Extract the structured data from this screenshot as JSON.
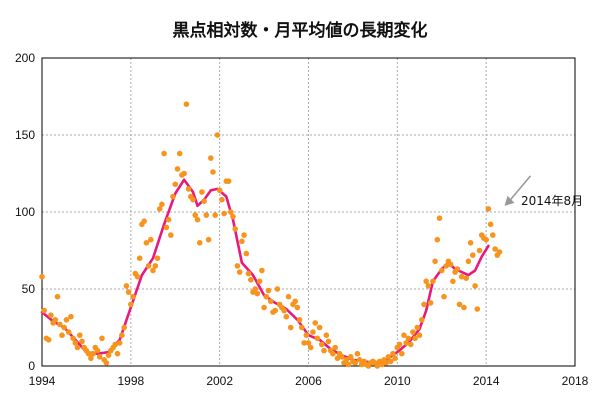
{
  "chart_data": {
    "type": "scatter",
    "title": "黒点相対数・月平均値の長期変化",
    "xlim": [
      1994,
      2018
    ],
    "ylim": [
      0,
      200
    ],
    "xticks": [
      "1994",
      "1998",
      "2002",
      "2006",
      "2010",
      "2014",
      "2018"
    ],
    "yticks": [
      "0",
      "50",
      "100",
      "150",
      "200"
    ],
    "grid": true,
    "annotation": {
      "text": "2014年8月",
      "x": 2014.6,
      "y": 74
    },
    "colors": {
      "monthly": "#f7941d",
      "smoothed": "#e8197d",
      "grid": "#aaaaaa",
      "axis": "#000000",
      "arrow": "#999999"
    },
    "series": [
      {
        "kind": "points",
        "points": [
          [
            1994.0,
            58
          ],
          [
            1994.1,
            36
          ],
          [
            1994.2,
            18
          ],
          [
            1994.3,
            17
          ],
          [
            1994.4,
            33
          ],
          [
            1994.5,
            28
          ],
          [
            1994.6,
            30
          ],
          [
            1994.7,
            45
          ],
          [
            1994.8,
            27
          ],
          [
            1994.9,
            20
          ],
          [
            1995.0,
            25
          ],
          [
            1995.1,
            30
          ],
          [
            1995.2,
            22
          ],
          [
            1995.3,
            32
          ],
          [
            1995.4,
            18
          ],
          [
            1995.5,
            15
          ],
          [
            1995.6,
            12
          ],
          [
            1995.7,
            20
          ],
          [
            1995.8,
            16
          ],
          [
            1995.9,
            12
          ],
          [
            1996.0,
            10
          ],
          [
            1996.1,
            8
          ],
          [
            1996.2,
            5
          ],
          [
            1996.3,
            8
          ],
          [
            1996.4,
            12
          ],
          [
            1996.5,
            10
          ],
          [
            1996.6,
            6
          ],
          [
            1996.7,
            18
          ],
          [
            1996.8,
            4
          ],
          [
            1996.9,
            2
          ],
          [
            1997.0,
            7
          ],
          [
            1997.1,
            10
          ],
          [
            1997.2,
            12
          ],
          [
            1997.3,
            14
          ],
          [
            1997.4,
            8
          ],
          [
            1997.5,
            15
          ],
          [
            1997.6,
            20
          ],
          [
            1997.7,
            25
          ],
          [
            1997.8,
            52
          ],
          [
            1997.9,
            48
          ],
          [
            1998.0,
            40
          ],
          [
            1998.1,
            45
          ],
          [
            1998.2,
            60
          ],
          [
            1998.3,
            58
          ],
          [
            1998.4,
            70
          ],
          [
            1998.5,
            92
          ],
          [
            1998.6,
            94
          ],
          [
            1998.7,
            80
          ],
          [
            1998.8,
            65
          ],
          [
            1998.9,
            82
          ],
          [
            1999.0,
            62
          ],
          [
            1999.1,
            65
          ],
          [
            1999.2,
            70
          ],
          [
            1999.3,
            102
          ],
          [
            1999.4,
            105
          ],
          [
            1999.5,
            138
          ],
          [
            1999.6,
            90
          ],
          [
            1999.7,
            95
          ],
          [
            1999.8,
            85
          ],
          [
            1999.9,
            110
          ],
          [
            2000.0,
            118
          ],
          [
            2000.1,
            128
          ],
          [
            2000.2,
            138
          ],
          [
            2000.3,
            124
          ],
          [
            2000.4,
            125
          ],
          [
            2000.5,
            170
          ],
          [
            2000.6,
            115
          ],
          [
            2000.7,
            110
          ],
          [
            2000.8,
            108
          ],
          [
            2000.9,
            98
          ],
          [
            2001.0,
            95
          ],
          [
            2001.1,
            80
          ],
          [
            2001.2,
            113
          ],
          [
            2001.3,
            107
          ],
          [
            2001.4,
            98
          ],
          [
            2001.5,
            82
          ],
          [
            2001.6,
            135
          ],
          [
            2001.7,
            126
          ],
          [
            2001.8,
            98
          ],
          [
            2001.9,
            150
          ],
          [
            2002.0,
            114
          ],
          [
            2002.1,
            108
          ],
          [
            2002.2,
            99
          ],
          [
            2002.3,
            120
          ],
          [
            2002.4,
            120
          ],
          [
            2002.5,
            100
          ],
          [
            2002.6,
            97
          ],
          [
            2002.7,
            89
          ],
          [
            2002.8,
            65
          ],
          [
            2002.9,
            61
          ],
          [
            2003.0,
            81
          ],
          [
            2003.1,
            85
          ],
          [
            2003.2,
            73
          ],
          [
            2003.3,
            60
          ],
          [
            2003.4,
            56
          ],
          [
            2003.5,
            48
          ],
          [
            2003.6,
            50
          ],
          [
            2003.7,
            47
          ],
          [
            2003.8,
            55
          ],
          [
            2003.9,
            62
          ],
          [
            2004.0,
            38
          ],
          [
            2004.1,
            45
          ],
          [
            2004.2,
            49
          ],
          [
            2004.3,
            42
          ],
          [
            2004.4,
            35
          ],
          [
            2004.5,
            36
          ],
          [
            2004.6,
            50
          ],
          [
            2004.7,
            40
          ],
          [
            2004.8,
            38
          ],
          [
            2004.9,
            36
          ],
          [
            2005.0,
            32
          ],
          [
            2005.1,
            45
          ],
          [
            2005.2,
            25
          ],
          [
            2005.3,
            40
          ],
          [
            2005.4,
            42
          ],
          [
            2005.5,
            38
          ],
          [
            2005.6,
            30
          ],
          [
            2005.7,
            25
          ],
          [
            2005.8,
            15
          ],
          [
            2005.9,
            20
          ],
          [
            2006.0,
            15
          ],
          [
            2006.1,
            12
          ],
          [
            2006.2,
            22
          ],
          [
            2006.3,
            28
          ],
          [
            2006.4,
            18
          ],
          [
            2006.5,
            25
          ],
          [
            2006.6,
            14
          ],
          [
            2006.7,
            10
          ],
          [
            2006.8,
            20
          ],
          [
            2006.9,
            16
          ],
          [
            2007.0,
            10
          ],
          [
            2007.1,
            8
          ],
          [
            2007.2,
            12
          ],
          [
            2007.3,
            5
          ],
          [
            2007.4,
            8
          ],
          [
            2007.5,
            6
          ],
          [
            2007.6,
            2
          ],
          [
            2007.7,
            4
          ],
          [
            2007.8,
            1
          ],
          [
            2007.9,
            6
          ],
          [
            2008.0,
            3
          ],
          [
            2008.1,
            2
          ],
          [
            2008.2,
            8
          ],
          [
            2008.3,
            4
          ],
          [
            2008.4,
            1
          ],
          [
            2008.5,
            3
          ],
          [
            2008.6,
            1
          ],
          [
            2008.7,
            0
          ],
          [
            2008.8,
            2
          ],
          [
            2008.9,
            3
          ],
          [
            2009.0,
            2
          ],
          [
            2009.1,
            0
          ],
          [
            2009.2,
            3
          ],
          [
            2009.3,
            1
          ],
          [
            2009.4,
            4
          ],
          [
            2009.5,
            2
          ],
          [
            2009.6,
            6
          ],
          [
            2009.7,
            3
          ],
          [
            2009.8,
            8
          ],
          [
            2009.9,
            5
          ],
          [
            2010.0,
            12
          ],
          [
            2010.1,
            14
          ],
          [
            2010.2,
            8
          ],
          [
            2010.3,
            20
          ],
          [
            2010.4,
            15
          ],
          [
            2010.5,
            18
          ],
          [
            2010.6,
            14
          ],
          [
            2010.7,
            22
          ],
          [
            2010.8,
            18
          ],
          [
            2010.9,
            25
          ],
          [
            2011.0,
            20
          ],
          [
            2011.1,
            30
          ],
          [
            2011.2,
            40
          ],
          [
            2011.3,
            55
          ],
          [
            2011.4,
            52
          ],
          [
            2011.5,
            41
          ],
          [
            2011.6,
            55
          ],
          [
            2011.7,
            68
          ],
          [
            2011.8,
            82
          ],
          [
            2011.9,
            96
          ],
          [
            2012.0,
            62
          ],
          [
            2012.1,
            45
          ],
          [
            2012.2,
            65
          ],
          [
            2012.3,
            68
          ],
          [
            2012.4,
            66
          ],
          [
            2012.5,
            55
          ],
          [
            2012.6,
            61
          ],
          [
            2012.7,
            63
          ],
          [
            2012.8,
            40
          ],
          [
            2012.9,
            58
          ],
          [
            2013.0,
            38
          ],
          [
            2013.1,
            57
          ],
          [
            2013.2,
            68
          ],
          [
            2013.3,
            80
          ],
          [
            2013.4,
            72
          ],
          [
            2013.5,
            52
          ],
          [
            2013.6,
            37
          ],
          [
            2013.7,
            75
          ],
          [
            2013.8,
            85
          ],
          [
            2013.9,
            83
          ],
          [
            2014.0,
            82
          ],
          [
            2014.1,
            102
          ],
          [
            2014.2,
            92
          ],
          [
            2014.3,
            85
          ],
          [
            2014.4,
            76
          ],
          [
            2014.5,
            72
          ],
          [
            2014.6,
            74
          ]
        ]
      },
      {
        "kind": "line",
        "points": [
          [
            1994.0,
            35
          ],
          [
            1994.5,
            29
          ],
          [
            1995.0,
            25
          ],
          [
            1995.5,
            17
          ],
          [
            1996.0,
            9
          ],
          [
            1996.5,
            8
          ],
          [
            1997.0,
            9
          ],
          [
            1997.5,
            17
          ],
          [
            1998.0,
            38
          ],
          [
            1998.5,
            59
          ],
          [
            1999.0,
            70
          ],
          [
            1999.5,
            92
          ],
          [
            2000.0,
            112
          ],
          [
            2000.4,
            121
          ],
          [
            2000.8,
            113
          ],
          [
            2001.0,
            104
          ],
          [
            2001.3,
            108
          ],
          [
            2001.6,
            114
          ],
          [
            2001.9,
            115
          ],
          [
            2002.3,
            110
          ],
          [
            2002.6,
            95
          ],
          [
            2003.0,
            67
          ],
          [
            2003.5,
            59
          ],
          [
            2004.0,
            46
          ],
          [
            2004.5,
            41
          ],
          [
            2005.0,
            37
          ],
          [
            2005.5,
            30
          ],
          [
            2006.0,
            20
          ],
          [
            2006.5,
            17
          ],
          [
            2007.0,
            11
          ],
          [
            2007.5,
            7
          ],
          [
            2008.0,
            4
          ],
          [
            2008.5,
            3
          ],
          [
            2009.0,
            2
          ],
          [
            2009.5,
            4
          ],
          [
            2010.0,
            9
          ],
          [
            2010.5,
            15
          ],
          [
            2011.0,
            24
          ],
          [
            2011.3,
            36
          ],
          [
            2011.6,
            55
          ],
          [
            2012.0,
            63
          ],
          [
            2012.3,
            67
          ],
          [
            2012.6,
            63
          ],
          [
            2012.9,
            61
          ],
          [
            2013.2,
            59
          ],
          [
            2013.5,
            62
          ],
          [
            2013.8,
            71
          ],
          [
            2014.1,
            78
          ]
        ]
      }
    ]
  }
}
